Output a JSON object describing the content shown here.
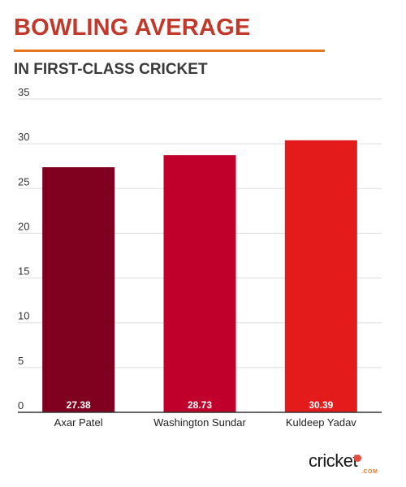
{
  "header": {
    "title": "BOWLING AVERAGE",
    "subtitle": "IN FIRST-CLASS CRICKET"
  },
  "chart_data": {
    "type": "bar",
    "title": "BOWLING AVERAGE",
    "subtitle": "IN FIRST-CLASS CRICKET",
    "categories": [
      "Axar Patel",
      "Washington Sundar",
      "Kuldeep Yadav"
    ],
    "values": [
      27.38,
      28.73,
      30.39
    ],
    "data_labels": [
      "27.38",
      "28.73",
      "30.39"
    ],
    "bar_colors": [
      "#800020",
      "#c0002a",
      "#e31b1b"
    ],
    "xlabel": "",
    "ylabel": "",
    "ylim": [
      0,
      35
    ],
    "yticks": [
      0,
      5,
      10,
      15,
      20,
      25,
      30,
      35
    ],
    "grid": true,
    "legend": "none"
  },
  "logo": {
    "word": "cricket",
    "sub": ".COM",
    "dot_color": "#e74c3c"
  }
}
